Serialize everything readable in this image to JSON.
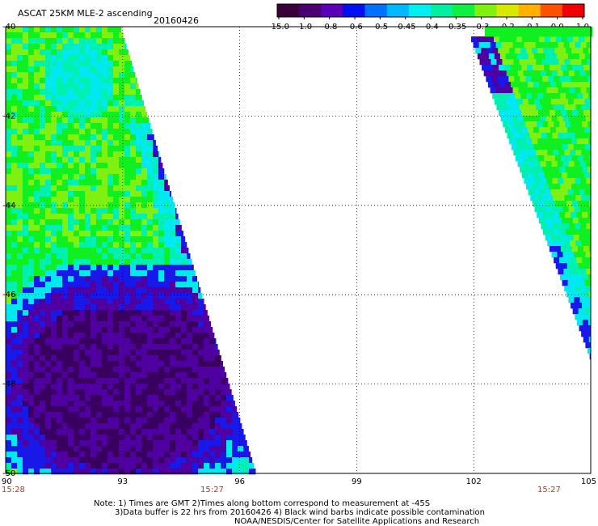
{
  "header": {
    "title": "ASCAT 25KM MLE-2 ascending",
    "date": "20160426"
  },
  "colorbar": {
    "ticks": [
      "-15.0",
      "-1.0",
      "-0.8",
      "-0.6",
      "-0.5",
      "-0.45",
      "-0.4",
      "-0.35",
      "-0.3",
      "-0.2",
      "-0.1",
      "0.0",
      "1.0"
    ],
    "colors": [
      "#3a0038",
      "#4a0070",
      "#5a00b8",
      "#0010f0",
      "#0070ff",
      "#00b8ff",
      "#00f0f0",
      "#00f0a0",
      "#10f040",
      "#80f010",
      "#d8e800",
      "#ffb000",
      "#ff5000",
      "#f00000"
    ]
  },
  "map": {
    "x_range": [
      90,
      105
    ],
    "y_range": [
      -50,
      -40
    ],
    "x_ticks": [
      "90",
      "93",
      "96",
      "99",
      "102",
      "105"
    ],
    "y_ticks": [
      "-40",
      "-42",
      "-44",
      "-46",
      "-48",
      "-50"
    ],
    "swath_times": [
      "15:28",
      "15:27",
      "15:27"
    ],
    "palette": {
      "deep_purple": "#3a0060",
      "purple": "#5000a0",
      "blue": "#1818e8",
      "cyan": "#00e8f0",
      "aqua": "#00f0b0",
      "green": "#10f020",
      "lime": "#80f010"
    }
  },
  "notes": {
    "line1": "Note: 1) Times are GMT 2)Times along bottom correspond to measurement at -45S",
    "line2": "3)Data buffer is 22 hrs from 20160426 4) Black wind barbs indicate possible contamination",
    "line3": "NOAA/NESDIS/Center for Satellite Applications and Research"
  }
}
